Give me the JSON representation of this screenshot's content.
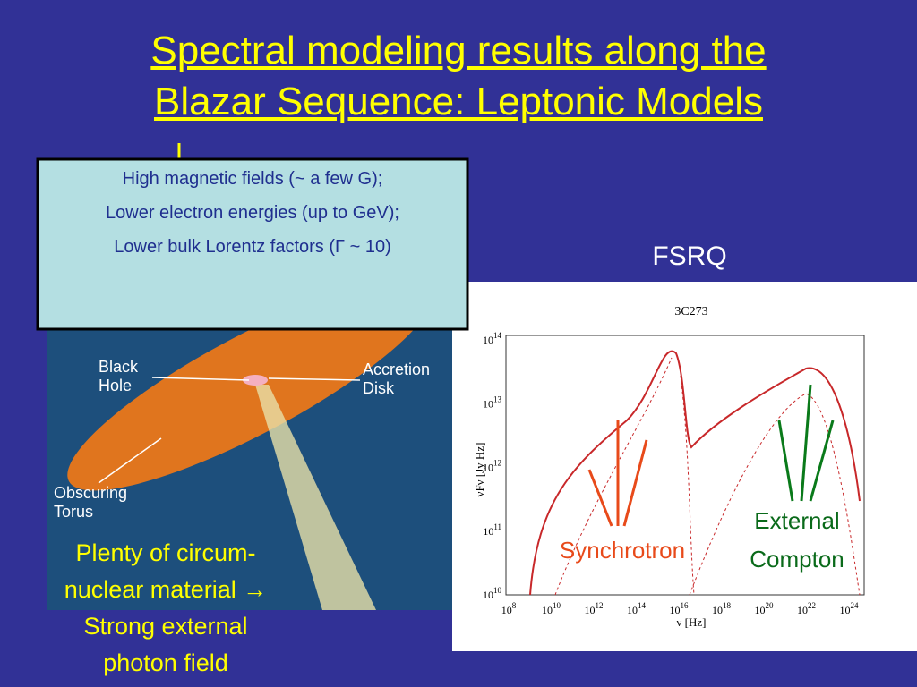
{
  "title": {
    "lines": [
      "Spectral modeling results along the",
      "Blazar Sequence: Leptonic Models"
    ]
  },
  "info_box": {
    "lines": [
      "High magnetic fields (~ a few G);",
      "Lower electron energies (up to GeV);",
      "Lower bulk Lorentz factors (Γ ~ 10)"
    ]
  },
  "agn_image": {
    "labels": [
      "Black Hole",
      "Accretion Disk",
      "Obscuring Torus"
    ]
  },
  "caption": {
    "lines": [
      "Plenty of circum-",
      "nuclear material →",
      "Strong external",
      "photon field"
    ]
  },
  "plot": {
    "heading": "FSRQ",
    "title": "3C273",
    "y_label": "νFν [Jy Hz]",
    "x_label": "ν [Hz]",
    "yticks": [
      {
        "base": "10",
        "exp": "14"
      },
      {
        "base": "10",
        "exp": "13"
      },
      {
        "base": "10",
        "exp": "12"
      },
      {
        "base": "10",
        "exp": "11"
      },
      {
        "base": "10",
        "exp": "10"
      }
    ],
    "xticks": [
      {
        "base": "10",
        "exp": "8"
      },
      {
        "base": "10",
        "exp": "10"
      },
      {
        "base": "10",
        "exp": "12"
      },
      {
        "base": "10",
        "exp": "14"
      },
      {
        "base": "10",
        "exp": "16"
      },
      {
        "base": "10",
        "exp": "18"
      },
      {
        "base": "10",
        "exp": "20"
      },
      {
        "base": "10",
        "exp": "22"
      },
      {
        "base": "10",
        "exp": "24"
      }
    ],
    "annotations": [
      "Synchrotron",
      "External",
      "Compton"
    ]
  }
}
